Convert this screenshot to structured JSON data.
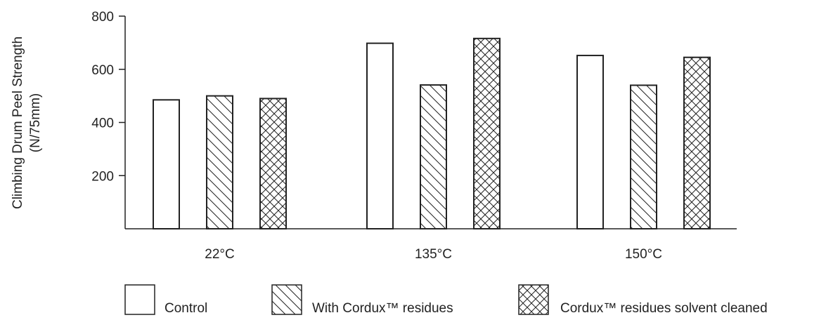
{
  "chart_data": {
    "type": "bar",
    "title": "",
    "ylabel_lines": [
      "Climbing Drum Peel Strength",
      "(N/75mm)"
    ],
    "xlabel": "",
    "categories": [
      "22°C",
      "135°C",
      "150°C"
    ],
    "series": [
      {
        "name": "Control",
        "pattern": "none",
        "values": [
          485,
          698,
          652
        ]
      },
      {
        "name": "With Cordux™ residues",
        "pattern": "diagonal",
        "values": [
          500,
          541,
          540
        ]
      },
      {
        "name": "Cordux™ residues solvent cleaned",
        "pattern": "crosshatch",
        "values": [
          490,
          716,
          645
        ]
      }
    ],
    "ylim": [
      0,
      800
    ],
    "yticks": [
      200,
      400,
      600,
      800
    ],
    "grid": false,
    "legend_position": "bottom"
  },
  "colors": {
    "stroke": "#222222",
    "fill": "#ffffff"
  }
}
